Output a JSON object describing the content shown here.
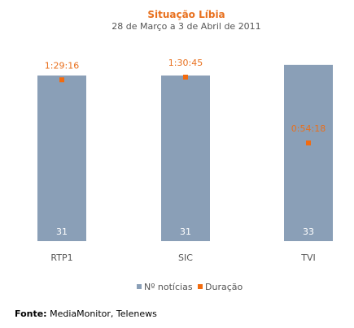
{
  "chart_data": {
    "type": "bar",
    "title": "Situação Líbia",
    "subtitle": "28 de Março a 3 de Abril de 2011",
    "categories": [
      "RTP1",
      "SIC",
      "TVI"
    ],
    "series": [
      {
        "name": "Nº notícias",
        "type": "bar",
        "values": [
          31,
          31,
          33
        ],
        "labels": [
          "31",
          "31",
          "33"
        ],
        "color": "#8a9fb7"
      },
      {
        "name": "Duração",
        "type": "point",
        "values_seconds": [
          5356,
          5445,
          3258
        ],
        "labels": [
          "1:29:16",
          "1:30:45",
          "0:54:18"
        ],
        "color": "#f26b0f"
      }
    ],
    "legend": "bottom-center",
    "grid": false
  },
  "source": {
    "label": "Fonte:",
    "text": "MediaMonitor, Telenews"
  }
}
